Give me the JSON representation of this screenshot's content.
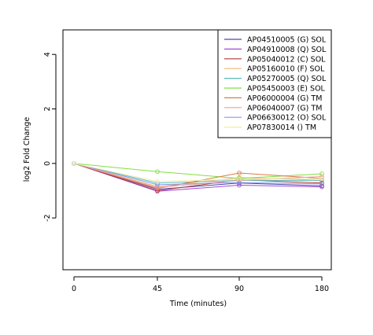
{
  "chart_data": {
    "type": "line",
    "xlabel": "Time (minutes)",
    "ylabel": "log2 Fold Change",
    "x": [
      0,
      45,
      90,
      180
    ],
    "x_ticks": [
      "0",
      "45",
      "90",
      "180"
    ],
    "y_ticks": [
      "-2",
      "0",
      "2",
      "4"
    ],
    "y_tick_values": [
      -2,
      0,
      2,
      4
    ],
    "ylim": [
      -3.9,
      4.9
    ],
    "legend_position": "top-right",
    "grid": false,
    "series": [
      {
        "name": "AP04510005 (G) SOL",
        "color": "#4a4aa8",
        "values": [
          0,
          -0.95,
          -0.72,
          -0.82
        ]
      },
      {
        "name": "AP04910008 (Q) SOL",
        "color": "#a24ad8",
        "values": [
          0,
          -1.02,
          -0.8,
          -0.86
        ]
      },
      {
        "name": "AP05040012 (C) SOL",
        "color": "#b23a3a",
        "values": [
          0,
          -1.0,
          -0.6,
          -0.72
        ]
      },
      {
        "name": "AP05160010 (F) SOL",
        "color": "#f0b878",
        "values": [
          0,
          -0.85,
          -0.52,
          -0.62
        ]
      },
      {
        "name": "AP05270005 (Q) SOL",
        "color": "#5abcbc",
        "values": [
          0,
          -0.72,
          -0.62,
          -0.62
        ]
      },
      {
        "name": "AP05450003 (E) SOL",
        "color": "#80e040",
        "values": [
          0,
          -0.3,
          -0.55,
          -0.38
        ]
      },
      {
        "name": "AP06000004 (G) TM",
        "color": "#e07848",
        "values": [
          0,
          -0.92,
          -0.35,
          -0.55
        ]
      },
      {
        "name": "AP06040007 (G) TM",
        "color": "#f0a0a0",
        "values": [
          0,
          -0.88,
          -0.62,
          -0.48
        ]
      },
      {
        "name": "AP06630012 (O) SOL",
        "color": "#8898e8",
        "values": [
          0,
          -0.78,
          -0.7,
          -0.75
        ]
      },
      {
        "name": "AP07830014 () TM",
        "color": "#eeeeaa",
        "values": [
          0,
          -0.66,
          -0.58,
          -0.56
        ]
      }
    ]
  }
}
